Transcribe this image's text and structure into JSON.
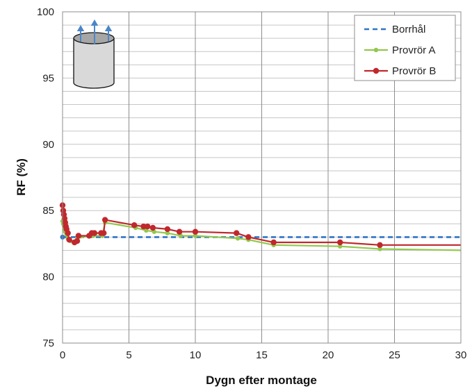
{
  "chart_data": {
    "type": "line",
    "title": "",
    "xlabel": "Dygn efter montage",
    "ylabel": "RF (%)",
    "xlim": [
      0,
      30
    ],
    "ylim": [
      75,
      100
    ],
    "x_ticks": [
      "0",
      "5",
      "10",
      "15",
      "20",
      "25",
      "30"
    ],
    "y_ticks": [
      "75",
      "80",
      "85",
      "90",
      "95",
      "100"
    ],
    "grid": {
      "x_major_step": 5,
      "y_minor_step": 1
    },
    "legend_position": "top-right",
    "series": [
      {
        "name": "Borrhål",
        "color": "#2e75c4",
        "style": "dashed",
        "markers": false,
        "x": [
          0,
          30
        ],
        "y": [
          83.0,
          83.0
        ]
      },
      {
        "name": "Provrör A",
        "color": "#92c84d",
        "style": "solid",
        "markers": true,
        "x": [
          0.0,
          0.05,
          0.1,
          0.15,
          0.2,
          0.3,
          0.4,
          0.6,
          0.9,
          1.1,
          2.0,
          2.3,
          3.0,
          3.2,
          5.5,
          6.3,
          6.9,
          7.9,
          8.9,
          10.0,
          13.2,
          14.0,
          15.9,
          20.9,
          23.9,
          30.0
        ],
        "y": [
          84.2,
          84.0,
          83.9,
          83.6,
          83.4,
          83.2,
          82.9,
          82.7,
          82.6,
          82.9,
          83.1,
          83.1,
          83.1,
          84.1,
          83.7,
          83.5,
          83.4,
          83.3,
          83.1,
          83.1,
          82.9,
          82.8,
          82.4,
          82.3,
          82.1,
          82.0
        ]
      },
      {
        "name": "Provrör B",
        "color": "#c0282d",
        "style": "solid",
        "markers": true,
        "x": [
          0.0,
          0.05,
          0.1,
          0.15,
          0.2,
          0.25,
          0.3,
          0.4,
          0.5,
          0.9,
          1.1,
          1.2,
          2.0,
          2.2,
          2.4,
          2.9,
          3.1,
          3.2,
          5.4,
          6.1,
          6.4,
          6.8,
          7.9,
          8.8,
          10.0,
          13.1,
          14.0,
          15.9,
          20.9,
          23.9,
          30.0
        ],
        "y": [
          85.4,
          85.0,
          84.7,
          84.4,
          84.1,
          83.8,
          83.6,
          83.3,
          82.8,
          82.6,
          82.7,
          83.1,
          83.1,
          83.3,
          83.3,
          83.3,
          83.3,
          84.3,
          83.9,
          83.8,
          83.8,
          83.7,
          83.6,
          83.4,
          83.4,
          83.3,
          83.0,
          82.6,
          82.6,
          82.4,
          82.4
        ]
      }
    ],
    "inset_icon": "cylinder-with-upward-arrows-icon"
  }
}
